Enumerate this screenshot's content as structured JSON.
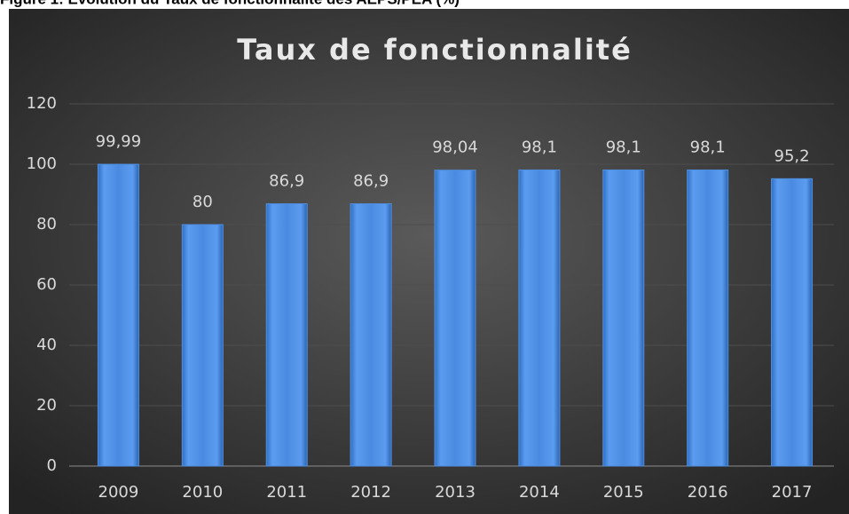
{
  "caption": "Figure 1: Evolution du Taux de fonctionnalité des AEPS/PEA (%)",
  "chart_data": {
    "type": "bar",
    "title": "Taux de fonctionnalité",
    "categories": [
      "2009",
      "2010",
      "2011",
      "2012",
      "2013",
      "2014",
      "2015",
      "2016",
      "2017"
    ],
    "values": [
      99.99,
      80,
      86.9,
      86.9,
      98.04,
      98.1,
      98.1,
      98.1,
      95.2
    ],
    "value_labels": [
      "99,99",
      "80",
      "86,9",
      "86,9",
      "98,04",
      "98,1",
      "98,1",
      "98,1",
      "95,2"
    ],
    "color": "#4f8fe0",
    "ylim": [
      0,
      120
    ],
    "yticks": [
      0,
      20,
      40,
      60,
      80,
      100,
      120
    ],
    "grid": true
  }
}
